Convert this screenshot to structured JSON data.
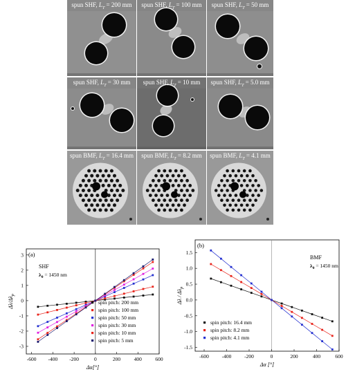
{
  "figure": {
    "tiles": [
      {
        "label": "spun SHF, L_T = 200 mm",
        "prefix": "spun SHF, ",
        "sym": "L",
        "sub": "T",
        "suffix": " = 200 mm",
        "kind": "shf",
        "variant": 0
      },
      {
        "label": "spun SHF, L_T = 100 mm",
        "prefix": "spun SHF, ",
        "sym": "L",
        "sub": "T",
        "suffix": " = 100 mm",
        "kind": "shf",
        "variant": 1
      },
      {
        "label": "spun SHF, L_T = 50 mm",
        "prefix": "spun SHF, ",
        "sym": "L",
        "sub": "T",
        "suffix": " = 50 mm",
        "kind": "shf",
        "variant": 2
      },
      {
        "label": "spun SHF, L_T = 30 mm",
        "prefix": "spun SHF, ",
        "sym": "L",
        "sub": "T",
        "suffix": " = 30 mm",
        "kind": "shf",
        "variant": 3
      },
      {
        "label": "spun SHF, L_T = 10 mm",
        "prefix": "spun SHF, ",
        "sym": "L",
        "sub": "T",
        "suffix": " = 10 mm",
        "kind": "shf",
        "variant": 4
      },
      {
        "label": "spun SHF, L_T = 5.0 mm",
        "prefix": "spun SHF, ",
        "sym": "L",
        "sub": "T",
        "suffix": " = 5.0 mm",
        "kind": "shf",
        "variant": 5
      },
      {
        "label": "spun BMF, L_T = 16.4 mm",
        "prefix": "spun BMF, ",
        "sym": "L",
        "sub": "T",
        "suffix": " = 16.4 mm",
        "kind": "bmf",
        "variant": 0
      },
      {
        "label": "spun BMF, L_T = 8.2 mm",
        "prefix": "spun BMF, ",
        "sym": "L",
        "sub": "T",
        "suffix": " = 8.2 mm",
        "kind": "bmf",
        "variant": 1
      },
      {
        "label": "spun BMF, L_T = 4.1 mm",
        "prefix": "spun BMF, ",
        "sym": "L",
        "sub": "T",
        "suffix": " = 4.1 mm",
        "kind": "bmf",
        "variant": 2
      }
    ]
  },
  "chart_data": [
    {
      "type": "line",
      "panel": "(a)",
      "fiber": "SHF",
      "lambda_label": "λ",
      "lambda_sub": "0",
      "lambda_value": " = 1450 nm",
      "xlabel": "Δα[°]",
      "ylabel": "Δλ/Δλ_p",
      "ylabel_main": "Δλ/Δλ",
      "ylabel_sub": "p",
      "xlim": [
        -650,
        600
      ],
      "ylim": [
        -3.5,
        3.4
      ],
      "xticks": [
        -600,
        -400,
        -200,
        0,
        200,
        400,
        600
      ],
      "yticks": [
        -3,
        -2,
        -1,
        0,
        1,
        2,
        3
      ],
      "x": [
        -540,
        -450,
        -360,
        -270,
        -180,
        -90,
        0,
        90,
        180,
        270,
        360,
        450,
        540
      ],
      "series": [
        {
          "name": "spin pitch: 200 mm",
          "color": "#111111",
          "slope": 0.00075
        },
        {
          "name": "spin pitch: 100 mm",
          "color": "#e8241b",
          "slope": 0.0017
        },
        {
          "name": "spin pitch: 50 mm",
          "color": "#2430d0",
          "slope": 0.0031
        },
        {
          "name": "spin pitch: 30 mm",
          "color": "#e020e0",
          "slope": 0.0039
        },
        {
          "name": "spin pitch: 10 mm",
          "color": "#e8241b",
          "slope": 0.0047
        },
        {
          "name": "spin pitch: 5 mm",
          "color": "#1a1a6e",
          "slope": 0.005
        }
      ],
      "legend": "bottom-right"
    },
    {
      "type": "line",
      "panel": "(b)",
      "fiber": "BMF",
      "lambda_label": "λ",
      "lambda_sub": "0",
      "lambda_value": " = 1450 nm",
      "xlabel": "Δα [°]",
      "ylabel": "Δλ / Δλ_p",
      "ylabel_main": "Δλ / Δλ",
      "ylabel_sub": "p",
      "xlim": [
        -680,
        600
      ],
      "ylim": [
        -1.62,
        1.9
      ],
      "xticks": [
        -600,
        -400,
        -200,
        0,
        200,
        400,
        600
      ],
      "yticks": [
        -1.5,
        -1.0,
        -0.5,
        0.0,
        0.5,
        1.0,
        1.5
      ],
      "x": [
        -540,
        -450,
        -360,
        -270,
        -180,
        -90,
        0,
        90,
        180,
        270,
        360,
        450,
        540
      ],
      "series": [
        {
          "name": "spin pitch: 16.4 mm",
          "color": "#111111",
          "slope": -0.00125
        },
        {
          "name": "spin pitch: 8.2 mm",
          "color": "#e8241b",
          "slope": -0.0021
        },
        {
          "name": "spin pitch: 4.1 mm",
          "color": "#2430d0",
          "slope": -0.0029
        }
      ],
      "legend": "bottom-left"
    }
  ]
}
